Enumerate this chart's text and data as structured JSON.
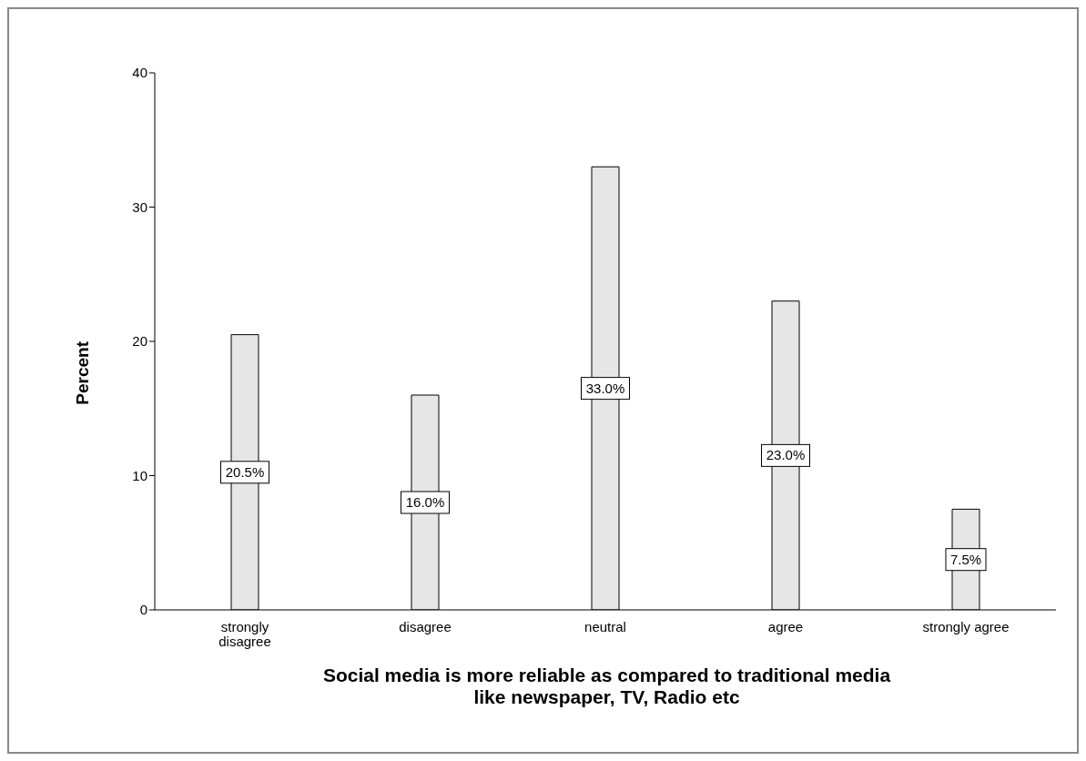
{
  "chart_data": {
    "type": "bar",
    "xlabel": "Social media is more reliable as compared to traditional media like newspaper, TV, Radio etc",
    "ylabel": "Percent",
    "categories": [
      "strongly disagree",
      "disagree",
      "neutral",
      "agree",
      "strongly agree"
    ],
    "values": [
      20.5,
      16.0,
      33.0,
      23.0,
      7.5
    ],
    "value_labels": [
      "20.5%",
      "16.0%",
      "33.0%",
      "23.0%",
      "7.5%"
    ],
    "color": "#e6e6e6",
    "ylim": [
      0,
      40
    ],
    "yticks": [
      0,
      10,
      20,
      30,
      40
    ],
    "grid": false,
    "legend": false
  }
}
